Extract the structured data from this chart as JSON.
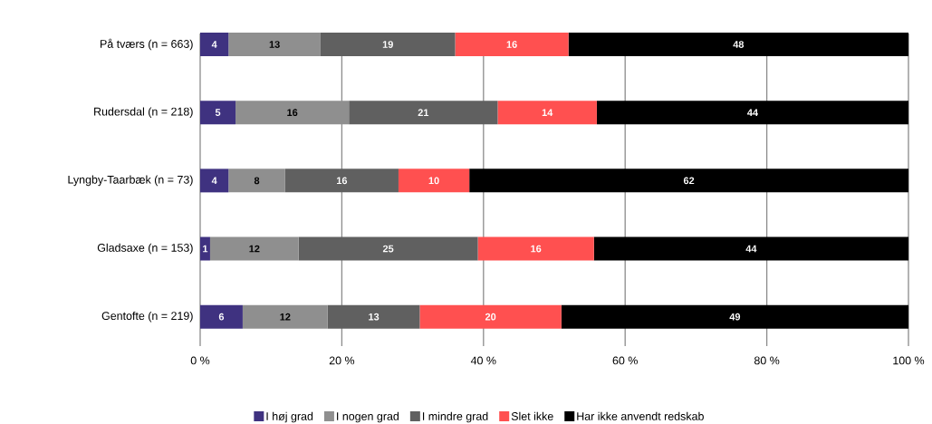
{
  "chart_data": {
    "type": "bar",
    "orientation": "horizontal",
    "stacked": true,
    "categories": [
      "På tværs (n = 663)",
      "Rudersdal (n = 218)",
      "Lyngby-Taarbæk (n = 73)",
      "Gladsaxe (n = 153)",
      "Gentofte (n = 219)"
    ],
    "series": [
      {
        "name": "I høj grad",
        "color": "#3f3280",
        "values": [
          4,
          5,
          4,
          1.4,
          6
        ],
        "value_labels": [
          "4",
          "5",
          "4",
          "1",
          "6"
        ]
      },
      {
        "name": "I nogen grad",
        "color": "#8f8f8f",
        "values": [
          13,
          16,
          8,
          12.5,
          12
        ],
        "value_labels": [
          "13",
          "16",
          "8",
          "12",
          "12"
        ]
      },
      {
        "name": "I mindre grad",
        "color": "#606060",
        "values": [
          19,
          21,
          16,
          25.3,
          13
        ],
        "value_labels": [
          "19",
          "21",
          "16",
          "25",
          "13"
        ]
      },
      {
        "name": "Slet ikke",
        "color": "#ff5050",
        "values": [
          16,
          14,
          10,
          16.4,
          20
        ],
        "value_labels": [
          "16",
          "14",
          "10",
          "16",
          "20"
        ]
      },
      {
        "name": "Har ikke anvendt redskab",
        "color": "#000000",
        "values": [
          48,
          44,
          62,
          44.4,
          49
        ],
        "value_labels": [
          "48",
          "44",
          "62",
          "44",
          "49"
        ]
      }
    ],
    "xlim": [
      0,
      100
    ],
    "xticks": [
      {
        "value": 0,
        "label": "0 %"
      },
      {
        "value": 20,
        "label": "20 %"
      },
      {
        "value": 40,
        "label": "40 %"
      },
      {
        "value": 60,
        "label": "60 %"
      },
      {
        "value": 80,
        "label": "80 %"
      },
      {
        "value": 100,
        "label": "100 %"
      }
    ],
    "grid": "x",
    "legend": "bottom"
  }
}
